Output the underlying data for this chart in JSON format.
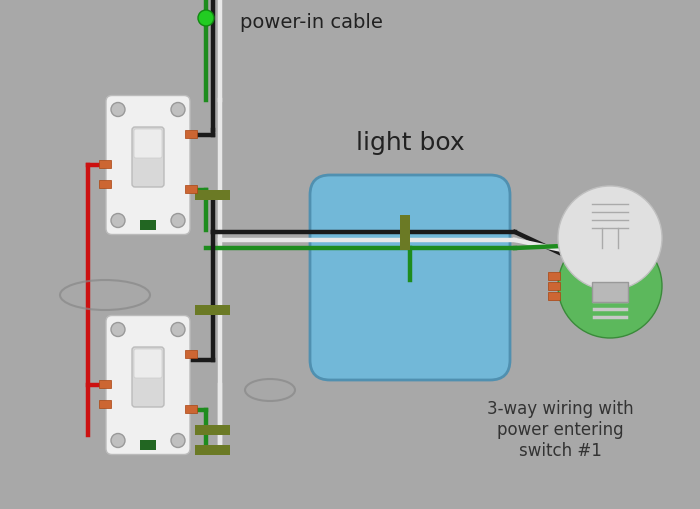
{
  "bg_color": "#a8a8a8",
  "title": "power-in cable",
  "subtitle": "3-way wiring with\npower entering\nswitch #1",
  "light_box_label": "light box",
  "wire_black": "#1a1a1a",
  "wire_white": "#e8e8e8",
  "wire_green": "#1e8c1e",
  "wire_red": "#cc1111",
  "wire_ground": "#6b7a25",
  "switch_fill": "#e8e8e8",
  "switch_plate": "#f0f0f0",
  "light_box_fill": "#72b8d8",
  "bulb_green": "#5cb85c",
  "bulb_glass": "#e0e0e0",
  "connector_orange": "#cc6633",
  "screw_color": "#c0c0c0",
  "lw_wire": 3.2,
  "lw_wire_thick": 4.0
}
